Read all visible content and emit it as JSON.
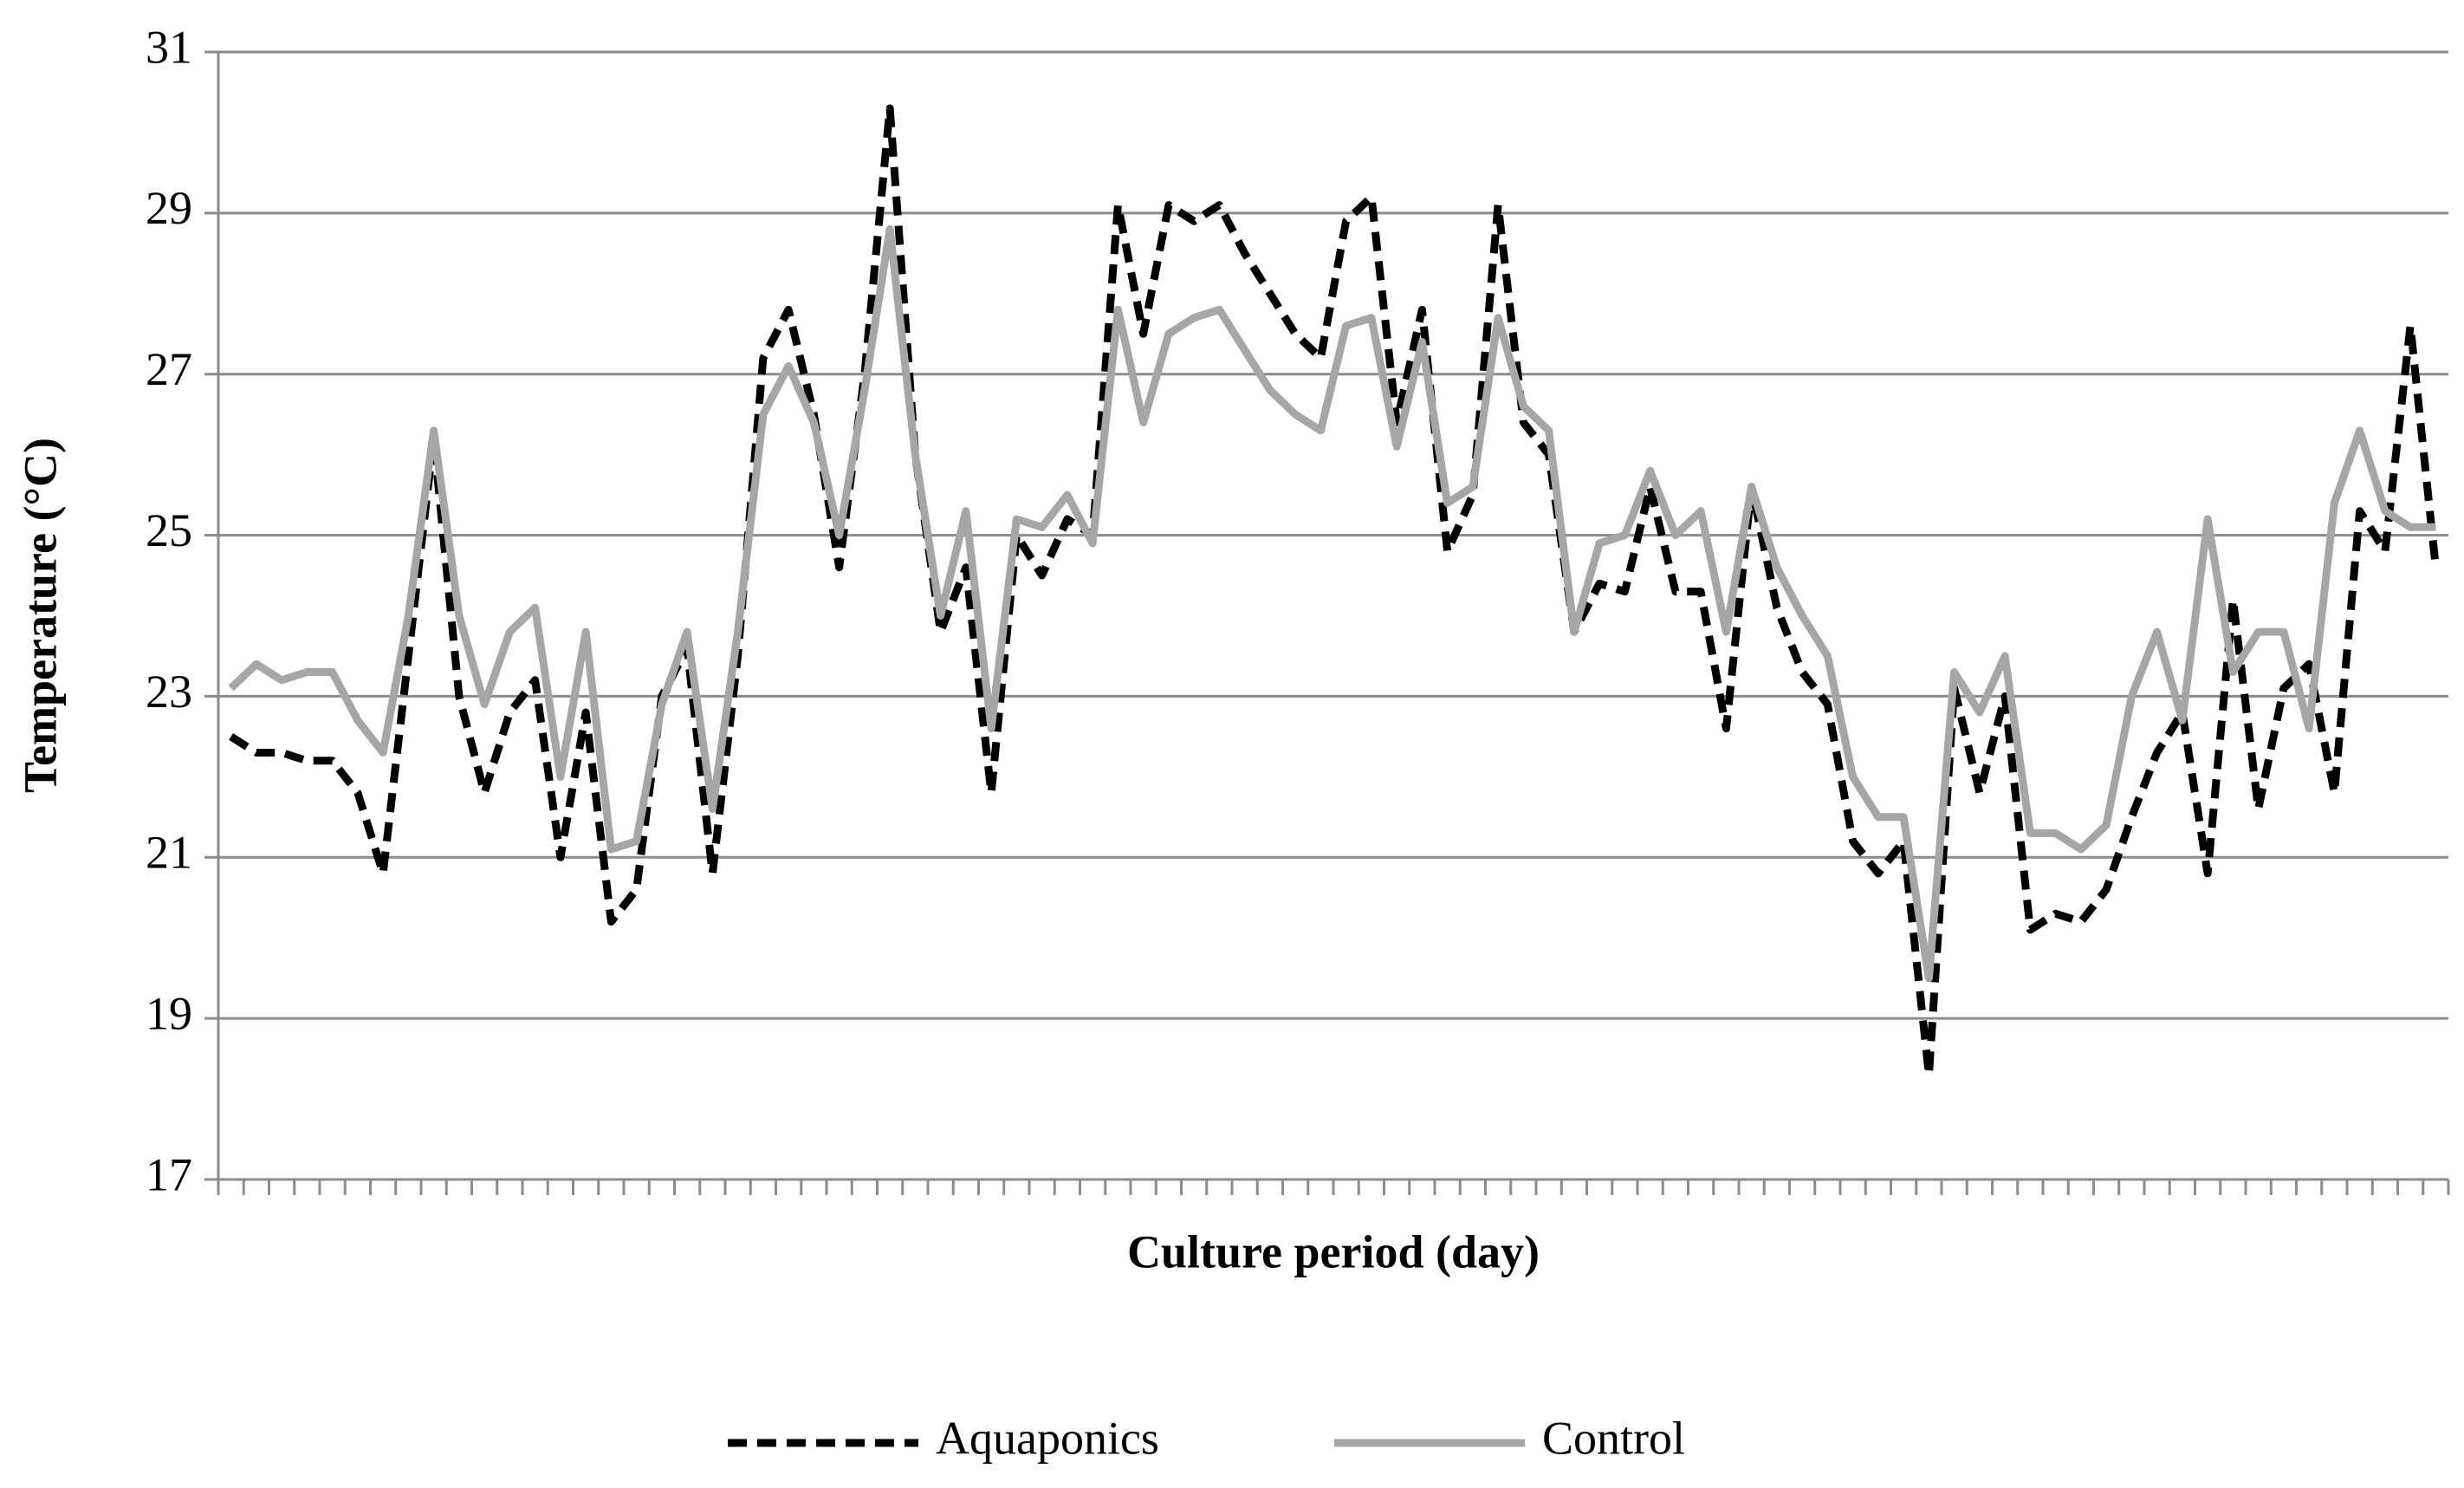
{
  "chart_data": {
    "type": "line",
    "x_label": "Culture period (day)",
    "y_label": "Temperature (°C)",
    "categories": [
      null,
      null,
      null,
      null,
      null,
      null,
      null,
      null,
      null,
      null,
      null,
      null,
      null,
      null,
      null,
      null,
      null,
      null,
      null,
      null,
      null,
      null,
      null,
      null,
      null,
      null,
      null,
      null,
      null,
      null,
      null,
      null,
      null,
      null,
      null,
      null,
      null,
      null,
      null,
      null,
      null,
      null,
      null,
      null,
      null,
      null,
      null,
      null,
      null,
      null,
      null,
      null,
      null,
      null,
      null,
      null,
      null,
      null,
      null,
      null,
      null,
      null,
      null,
      null,
      null,
      null,
      null,
      null,
      null,
      null,
      null,
      null,
      null,
      null,
      null,
      null,
      null,
      null,
      null,
      null,
      null,
      null,
      null,
      null,
      null,
      null,
      null,
      null
    ],
    "series": [
      {
        "name": "Aquaponics",
        "color": "#000000",
        "dash": true,
        "values": [
          22.5,
          22.3,
          22.3,
          22.2,
          22.2,
          21.8,
          20.8,
          23.5,
          26.2,
          23.0,
          21.8,
          22.8,
          23.2,
          21.0,
          22.8,
          20.2,
          20.6,
          23.0,
          23.6,
          20.8,
          23.5,
          27.2,
          27.8,
          26.5,
          24.6,
          27.0,
          30.3,
          26.0,
          23.8,
          24.6,
          21.8,
          25.0,
          24.5,
          25.2,
          25.0,
          29.1,
          27.5,
          29.1,
          28.9,
          29.1,
          28.5,
          28.0,
          27.5,
          27.2,
          28.9,
          29.2,
          26.4,
          27.8,
          24.8,
          25.5,
          29.1,
          26.4,
          26.0,
          23.8,
          24.4,
          24.3,
          25.6,
          24.3,
          24.3,
          22.6,
          25.6,
          24.1,
          23.3,
          22.9,
          21.2,
          20.8,
          21.2,
          18.3,
          23.1,
          21.8,
          23.0,
          20.1,
          20.3,
          20.2,
          20.6,
          21.5,
          22.3,
          22.8,
          20.8,
          24.2,
          21.6,
          23.1,
          23.4,
          21.8,
          25.3,
          24.8,
          27.6,
          24.6
        ]
      },
      {
        "name": "Control",
        "color": "#a6a6a6",
        "dash": false,
        "values": [
          23.1,
          23.4,
          23.2,
          23.3,
          23.3,
          22.7,
          22.3,
          24.0,
          26.3,
          24.0,
          22.9,
          23.8,
          24.1,
          22.0,
          23.8,
          21.1,
          21.2,
          22.9,
          23.8,
          21.6,
          23.8,
          26.5,
          27.1,
          26.4,
          25.0,
          26.8,
          28.8,
          26.0,
          24.0,
          25.3,
          22.6,
          25.2,
          25.1,
          25.5,
          24.9,
          27.8,
          26.4,
          27.5,
          27.7,
          27.8,
          27.3,
          26.8,
          26.5,
          26.3,
          27.6,
          27.7,
          26.1,
          27.4,
          25.4,
          25.6,
          27.7,
          26.6,
          26.3,
          23.8,
          24.9,
          25.0,
          25.8,
          25.0,
          25.3,
          23.8,
          25.6,
          24.6,
          24.0,
          23.5,
          22.0,
          21.5,
          21.5,
          19.5,
          23.3,
          22.8,
          23.5,
          21.3,
          21.3,
          21.1,
          21.4,
          23.0,
          23.8,
          22.7,
          25.2,
          23.3,
          23.8,
          23.8,
          22.6,
          25.4,
          26.3,
          25.3,
          25.1,
          25.1
        ]
      }
    ],
    "ylim": [
      17,
      31
    ],
    "yticks": [
      17,
      19,
      21,
      23,
      25,
      27,
      29,
      31
    ],
    "grid": true,
    "legend": "bottom"
  }
}
